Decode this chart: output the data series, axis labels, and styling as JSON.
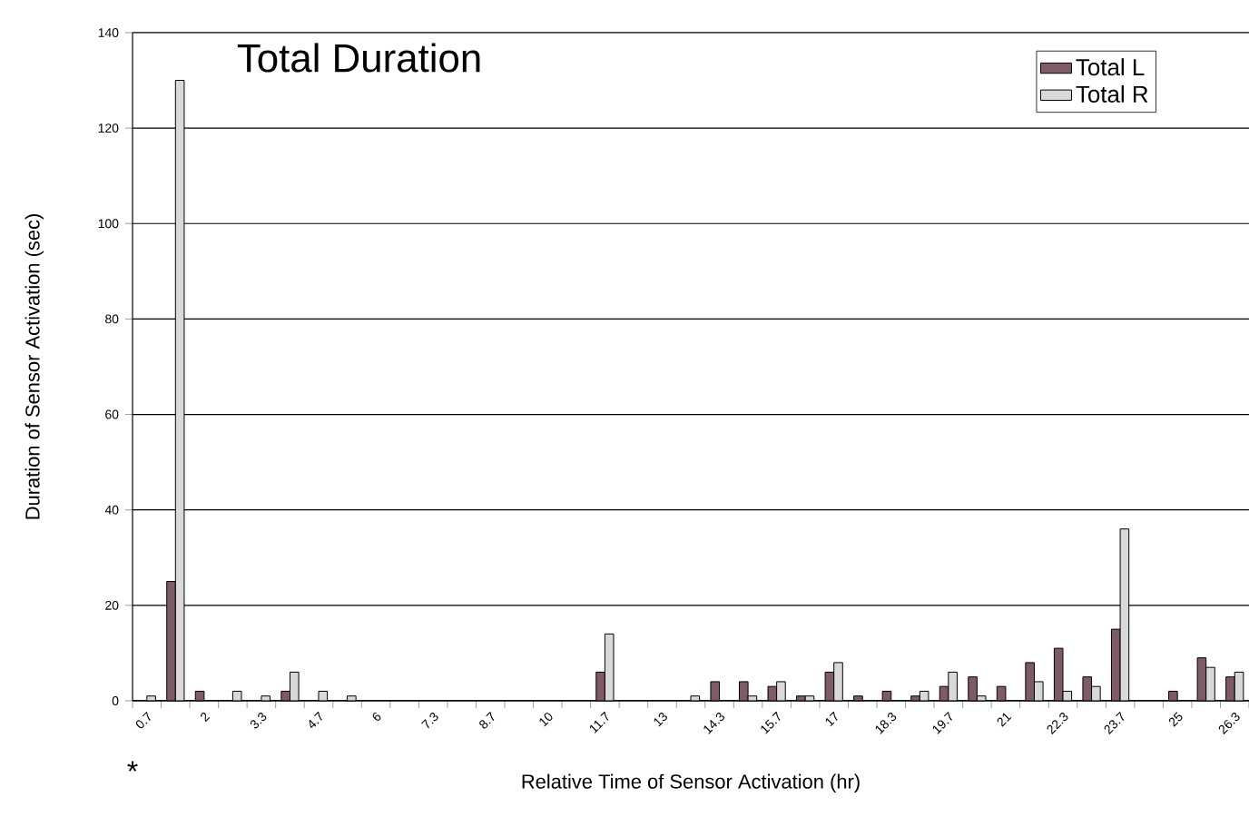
{
  "chart_data": {
    "type": "bar",
    "title": "Total Duration",
    "xlabel": "Relative Time of Sensor Activation (hr)",
    "ylabel": "Duration of Sensor Activation (sec)",
    "categories": [
      "0.7",
      null,
      "2",
      null,
      "3.3",
      null,
      "4.7",
      null,
      "6",
      null,
      "7.3",
      null,
      "8.7",
      null,
      "10",
      null,
      "11.7",
      null,
      "13",
      null,
      "14.3",
      null,
      "15.7",
      null,
      "17",
      null,
      "18.3",
      null,
      "19.7",
      null,
      "21",
      null,
      "22.3",
      null,
      "23.7",
      null,
      "25",
      null,
      "26.3"
    ],
    "series": [
      {
        "name": "Total L",
        "color": "#7f5a68",
        "values": [
          0,
          25,
          2,
          0,
          0,
          2,
          0,
          0,
          0,
          0,
          0,
          0,
          0,
          0,
          0,
          0,
          6,
          0,
          0,
          0,
          4,
          4,
          3,
          1,
          6,
          1,
          2,
          1,
          3,
          5,
          3,
          8,
          11,
          5,
          15,
          0,
          2,
          9,
          5
        ]
      },
      {
        "name": "Total R",
        "color": "#d9d9d9",
        "values": [
          1,
          130,
          0,
          2,
          1,
          6,
          2,
          1,
          0,
          0,
          0,
          0,
          0,
          0,
          0,
          0,
          14,
          0,
          0,
          1,
          0,
          1,
          4,
          1,
          8,
          0,
          0,
          2,
          6,
          1,
          0,
          4,
          2,
          3,
          36,
          0,
          0,
          7,
          6
        ]
      }
    ],
    "ylim": [
      0,
      140
    ],
    "yticks": [
      0,
      20,
      40,
      60,
      80,
      100,
      120,
      140
    ],
    "grid": "y",
    "legend": "top right",
    "annotations": [
      "*"
    ]
  }
}
